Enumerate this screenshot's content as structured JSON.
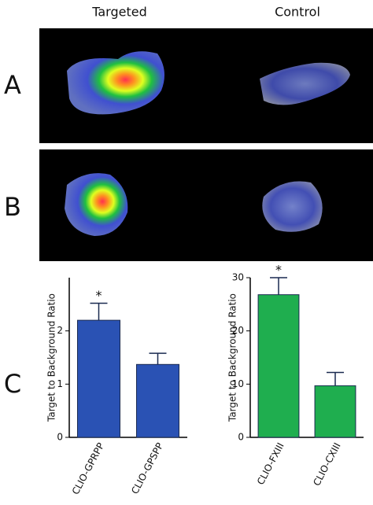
{
  "panels": {
    "column_labels": [
      "Targeted",
      "Control"
    ],
    "row_labels": [
      "A",
      "B",
      "C"
    ]
  },
  "chart_data": [
    {
      "type": "bar",
      "y_label": "Target to Background Ratio",
      "categories": [
        "CLIO-GPRPP",
        "CLIO-GPSPP"
      ],
      "values": [
        2.2,
        1.37
      ],
      "errors": [
        0.32,
        0.21
      ],
      "value_annotations": [
        "*",
        null
      ],
      "color": "#2a52b4",
      "ylim": [
        0,
        3
      ],
      "yticks": [
        0,
        1,
        2
      ]
    },
    {
      "type": "bar",
      "y_label": "Target to Background Ratio",
      "categories": [
        "CLIO-FXIII",
        "CLIO-CXIII"
      ],
      "values": [
        26.8,
        9.7
      ],
      "errors": [
        3.2,
        2.5
      ],
      "value_annotations": [
        "*",
        null
      ],
      "color": "#1fae4f",
      "ylim": [
        0,
        30
      ],
      "yticks": [
        0,
        10,
        20,
        30
      ]
    }
  ]
}
